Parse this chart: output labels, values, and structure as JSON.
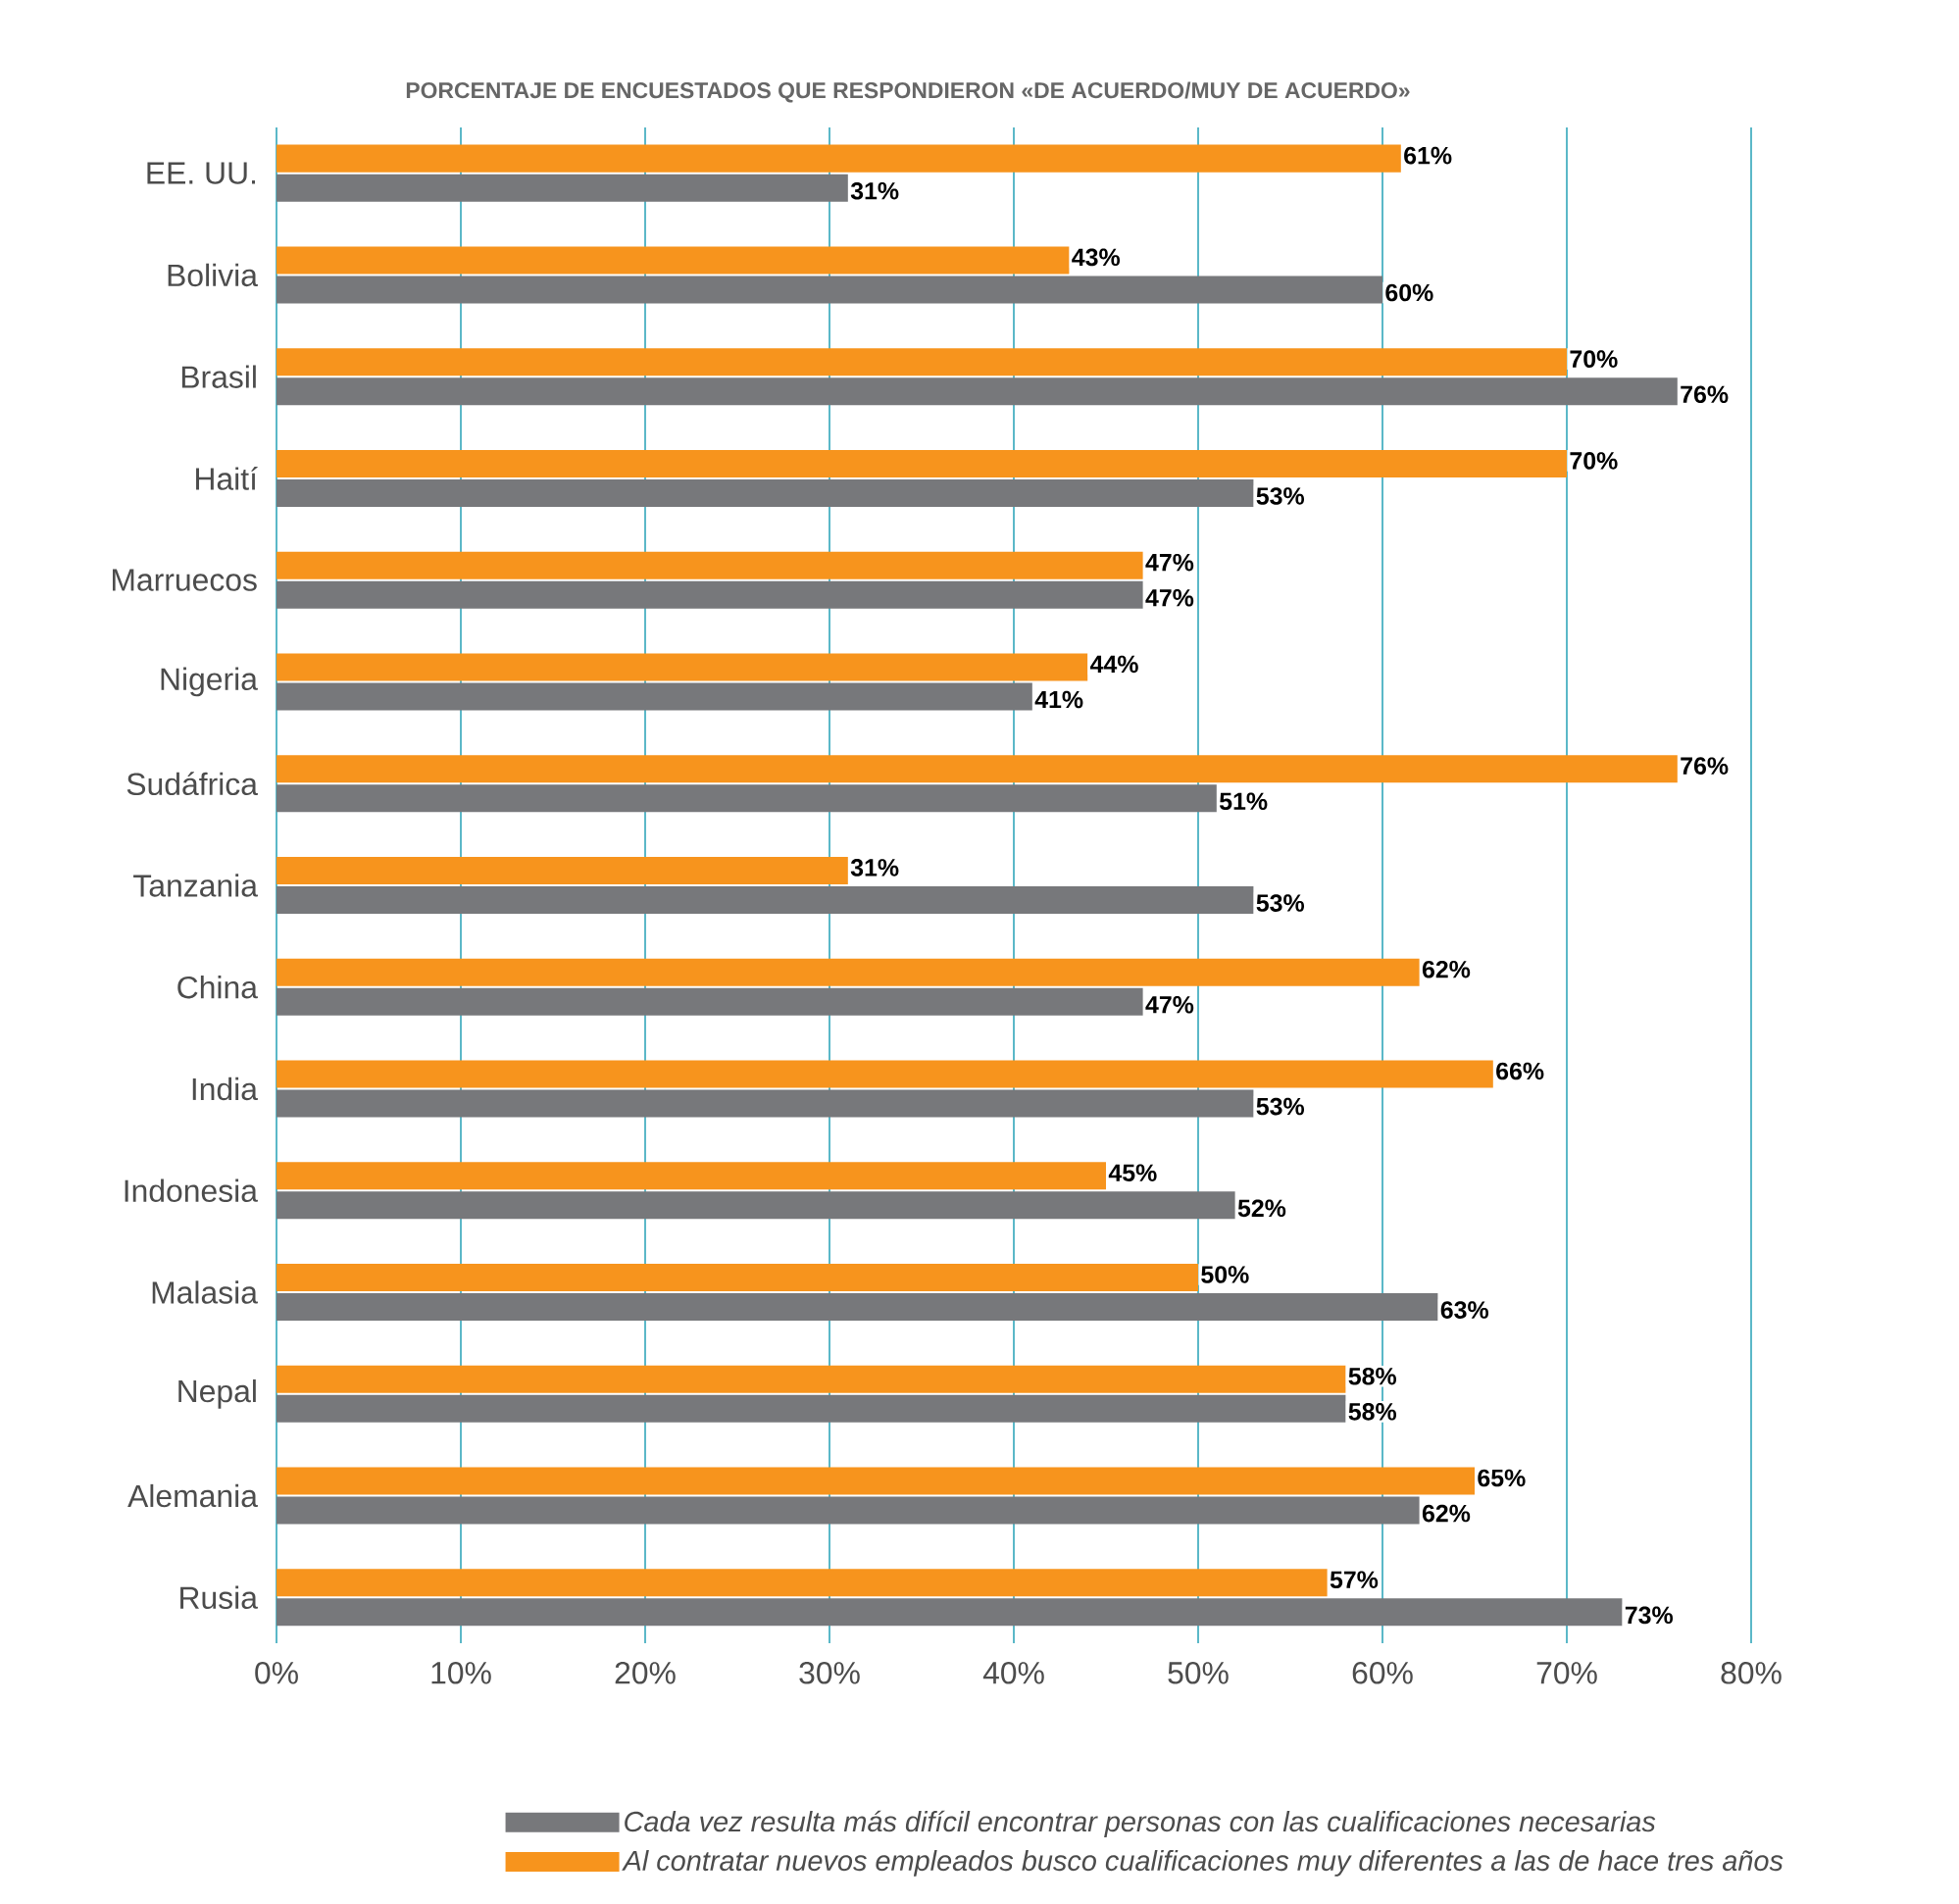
{
  "chart_data": {
    "type": "bar",
    "orientation": "horizontal",
    "title": "PORCENTAJE DE ENCUESTADOS QUE RESPONDIERON «DE ACUERDO/MUY DE ACUERDO»",
    "categories": [
      "EE. UU.",
      "Bolivia",
      "Brasil",
      "Haití",
      "Marruecos",
      "Nigeria",
      "Sudáfrica",
      "Tanzania",
      "China",
      "India",
      "Indonesia",
      "Malasia",
      "Nepal",
      "Alemania",
      "Rusia"
    ],
    "series": [
      {
        "name": "Cada vez resulta más difícil encontrar personas con las cualificaciones necesarias",
        "color": "#77787b",
        "values": [
          31,
          60,
          76,
          53,
          47,
          41,
          51,
          53,
          47,
          53,
          52,
          63,
          58,
          62,
          73
        ],
        "value_labels": [
          "31%",
          "60%",
          "76%",
          "53%",
          "47%",
          "41%",
          "51%",
          "53%",
          "47%",
          "53%",
          "52%",
          "63%",
          "58%",
          "62%",
          "73%"
        ]
      },
      {
        "name": "Al contratar nuevos empleados busco cualificaciones muy diferentes a las de hace tres años",
        "color": "#f7941d",
        "values": [
          61,
          43,
          70,
          70,
          47,
          44,
          76,
          31,
          62,
          66,
          45,
          50,
          58,
          65,
          57
        ],
        "value_labels": [
          "61%",
          "43%",
          "70%",
          "70%",
          "47%",
          "44%",
          "76%",
          "31%",
          "62%",
          "66%",
          "45%",
          "50%",
          "58%",
          "65%",
          "57%"
        ]
      }
    ],
    "xlim": [
      0,
      80
    ],
    "xticks": [
      {
        "value": 0,
        "label": "0%"
      },
      {
        "value": 10,
        "label": "10%"
      },
      {
        "value": 20,
        "label": "20%"
      },
      {
        "value": 30,
        "label": "30%"
      },
      {
        "value": 40,
        "label": "40%"
      },
      {
        "value": 50,
        "label": "50%"
      },
      {
        "value": 60,
        "label": "60%"
      },
      {
        "value": 70,
        "label": "70%"
      },
      {
        "value": 80,
        "label": "80%"
      }
    ],
    "grid": "x",
    "legend": "bottom"
  }
}
